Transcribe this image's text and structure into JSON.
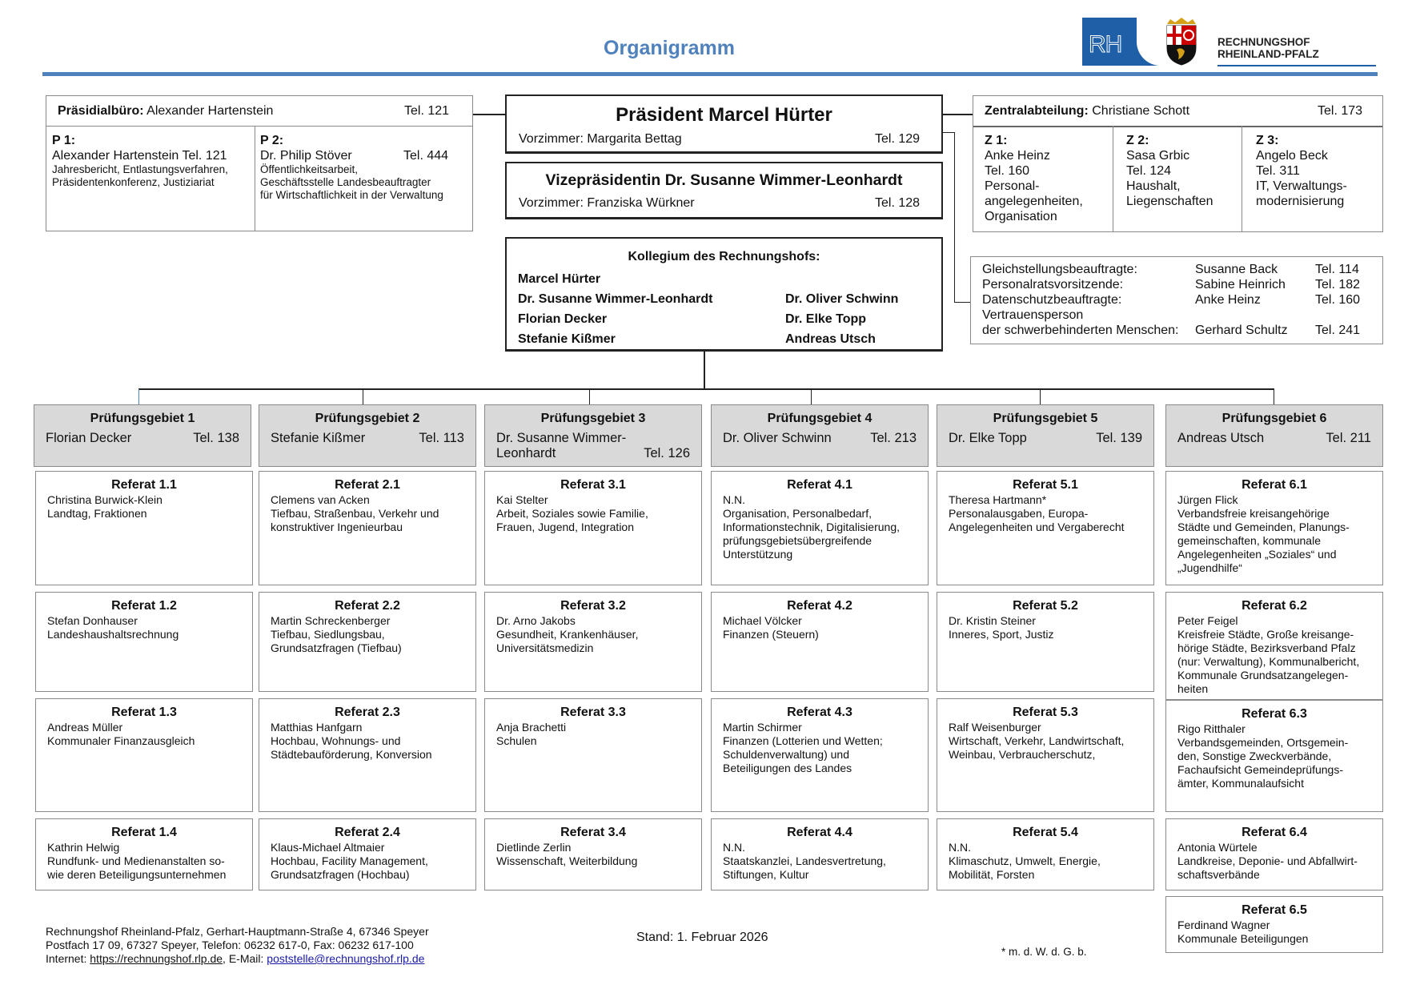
{
  "header": {
    "title": "Organigramm",
    "logo_mark": "RH",
    "logo_line1": "RECHNUNGSHOF",
    "logo_line2": "RHEINLAND-PFALZ",
    "accent_color": "#4f81bd"
  },
  "praesidialbuero": {
    "label": "Präsidialbüro:",
    "name": "Alexander Hartenstein",
    "tel": "Tel. 121",
    "p1": {
      "label": "P 1:",
      "name": "Alexander Hartenstein Tel. 121",
      "tasks": "Jahresbericht, Entlastungsverfahren,\nPräsidentenkonferenz, Justiziariat"
    },
    "p2": {
      "label": "P 2:",
      "name": "Dr. Philip Stöver",
      "tel": "Tel. 444",
      "tasks": "Öffentlichkeitsarbeit,\nGeschäftsstelle Landesbeauftragter\nfür Wirtschaftlichkeit in der Verwaltung"
    }
  },
  "praesident": {
    "title": "Präsident Marcel Hürter",
    "vorzimmer": "Vorzimmer: Margarita Bettag",
    "tel": "Tel. 129"
  },
  "vize": {
    "title": "Vizepräsidentin Dr. Susanne Wimmer-Leonhardt",
    "vorzimmer": "Vorzimmer: Franziska Würkner",
    "tel": "Tel. 128"
  },
  "kollegium": {
    "title": "Kollegium des Rechnungshofs:",
    "left": [
      "Marcel Hürter",
      "Dr. Susanne Wimmer-Leonhardt",
      "Florian Decker",
      "Stefanie Kißmer"
    ],
    "right": [
      "Dr. Oliver Schwinn",
      "Dr. Elke Topp",
      "Andreas Utsch"
    ]
  },
  "zentralabteilung": {
    "label": "Zentralabteilung:",
    "name": "Christiane Schott",
    "tel": "Tel. 173",
    "units": [
      {
        "label": "Z 1:",
        "text": "Anke Heinz\nTel. 160\nPersonal-\nangelegenheiten,\nOrganisation"
      },
      {
        "label": "Z 2:",
        "text": "Sasa Grbic\nTel. 124\nHaushalt,\nLiegenschaften"
      },
      {
        "label": "Z 3:",
        "text": "Angelo Beck\nTel. 311\nIT, Verwaltungs-\nmodernisierung"
      }
    ]
  },
  "beauftragte": [
    {
      "role": "Gleichstellungsbeauftragte:",
      "name": "Susanne Back",
      "tel": "Tel. 114"
    },
    {
      "role": "Personalratsvorsitzende:",
      "name": "Sabine Heinrich",
      "tel": "Tel. 182"
    },
    {
      "role": "Datenschutzbeauftragte:",
      "name": "Anke Heinz",
      "tel": "Tel. 160"
    },
    {
      "role": "Vertrauensperson",
      "name": "",
      "tel": ""
    },
    {
      "role": "der schwerbehinderten Menschen:",
      "name": "Gerhard Schultz",
      "tel": "Tel. 241"
    }
  ],
  "pruefungsgebiete": [
    {
      "title": "Prüfungsgebiet 1",
      "leader": "Florian Decker",
      "tel": "Tel. 138",
      "referate": [
        {
          "title": "Referat 1.1",
          "text": "Christina Burwick-Klein\nLandtag, Fraktionen"
        },
        {
          "title": "Referat 1.2",
          "text": "Stefan Donhauser\nLandeshaushaltsrechnung"
        },
        {
          "title": "Referat 1.3",
          "text": "Andreas Müller\nKommunaler Finanzausgleich"
        },
        {
          "title": "Referat 1.4",
          "text": "Kathrin Helwig\nRundfunk- und Medienanstalten so-\nwie deren Beteiligungsunternehmen"
        }
      ]
    },
    {
      "title": "Prüfungsgebiet 2",
      "leader": "Stefanie Kißmer",
      "tel": "Tel. 113",
      "referate": [
        {
          "title": "Referat 2.1",
          "text": "Clemens van Acken\nTiefbau, Straßenbau, Verkehr und\nkonstruktiver Ingenieurbau"
        },
        {
          "title": "Referat 2.2",
          "text": "Martin Schreckenberger\nTiefbau, Siedlungsbau,\nGrundsatzfragen (Tiefbau)"
        },
        {
          "title": "Referat 2.3",
          "text": "Matthias Hanfgarn\nHochbau, Wohnungs- und\nStädtebauförderung, Konversion"
        },
        {
          "title": "Referat 2.4",
          "text": "Klaus-Michael Altmaier\nHochbau, Facility Management,\nGrundsatzfragen (Hochbau)"
        }
      ]
    },
    {
      "title": "Prüfungsgebiet 3",
      "leader": "Dr. Susanne Wimmer-\nLeonhardt",
      "tel": "Tel. 126",
      "referate": [
        {
          "title": "Referat 3.1",
          "text": "Kai Stelter\nArbeit, Soziales sowie Familie,\nFrauen, Jugend, Integration"
        },
        {
          "title": "Referat 3.2",
          "text": "Dr. Arno Jakobs\nGesundheit, Krankenhäuser,\nUniversitätsmedizin"
        },
        {
          "title": "Referat 3.3",
          "text": "Anja Brachetti\nSchulen"
        },
        {
          "title": "Referat 3.4",
          "text": "Dietlinde Zerlin\nWissenschaft, Weiterbildung"
        }
      ]
    },
    {
      "title": "Prüfungsgebiet 4",
      "leader": "Dr. Oliver Schwinn",
      "tel": "Tel. 213",
      "referate": [
        {
          "title": "Referat 4.1",
          "text": "N.N.\nOrganisation, Personalbedarf,\nInformationstechnik, Digitalisierung,\nprüfungsgebietsübergreifende\nUnterstützung"
        },
        {
          "title": "Referat 4.2",
          "text": "Michael Völcker\nFinanzen (Steuern)"
        },
        {
          "title": "Referat 4.3",
          "text": "Martin Schirmer\nFinanzen (Lotterien und Wetten;\nSchuldenverwaltung) und\nBeteiligungen des Landes"
        },
        {
          "title": "Referat 4.4",
          "text": "N.N.\nStaatskanzlei, Landesvertretung,\nStiftungen, Kultur"
        }
      ]
    },
    {
      "title": "Prüfungsgebiet 5",
      "leader": "Dr. Elke Topp",
      "tel": "Tel. 139",
      "referate": [
        {
          "title": "Referat 5.1",
          "text": "Theresa Hartmann*\nPersonalausgaben, Europa-\nAngelegenheiten und Vergaberecht"
        },
        {
          "title": "Referat 5.2",
          "text": "Dr. Kristin Steiner\nInneres, Sport, Justiz"
        },
        {
          "title": "Referat 5.3",
          "text": "Ralf Weisenburger\nWirtschaft, Verkehr, Landwirtschaft,\nWeinbau, Verbraucherschutz,"
        },
        {
          "title": "Referat 5.4",
          "text": "N.N.\nKlimaschutz, Umwelt, Energie,\nMobilität, Forsten"
        }
      ]
    },
    {
      "title": "Prüfungsgebiet 6",
      "leader": "Andreas Utsch",
      "tel": "Tel. 211",
      "referate": [
        {
          "title": "Referat 6.1",
          "text": "Jürgen Flick\nVerbandsfreie kreisangehörige\nStädte und Gemeinden, Planungs-\ngemeinschaften, kommunale\nAngelegenheiten „Soziales“ und\n„Jugendhilfe“"
        },
        {
          "title": "Referat 6.2",
          "text": "Peter Feigel\nKreisfreie Städte, Große kreisange-\nhörige Städte, Bezirksverband Pfalz\n(nur: Verwaltung), Kommunalbericht,\nKommunale Grundsatzangelegen-\nheiten"
        },
        {
          "title": "Referat 6.3",
          "text": "Rigo Ritthaler\nVerbandsgemeinden, Ortsgemein-\nden, Sonstige Zweckverbände,\nFachaufsicht Gemeindeprüfungs-\nämter, Kommunalaufsicht"
        },
        {
          "title": "Referat 6.4",
          "text": "Antonia Würtele\nLandkreise, Deponie- und Abfallwirt-\nschaftsverbände"
        },
        {
          "title": "Referat 6.5",
          "text": "Ferdinand Wagner\nKommunale Beteiligungen"
        }
      ]
    }
  ],
  "footer": {
    "address1": "Rechnungshof Rheinland-Pfalz, Gerhart-Hauptmann-Straße 4, 67346 Speyer",
    "address2": "Postfach 17 09, 67327 Speyer, Telefon: 06232 617-0, Fax: 06232 617-100",
    "internet_label": "Internet: ",
    "internet_link": "https://rechnungshof.rlp.de",
    "email_label": ", E-Mail: ",
    "email_link": "poststelle@rechnungshof.rlp.de",
    "stand": "Stand: 1. Februar 2026",
    "footnote": "* m. d. W. d. G. b."
  }
}
